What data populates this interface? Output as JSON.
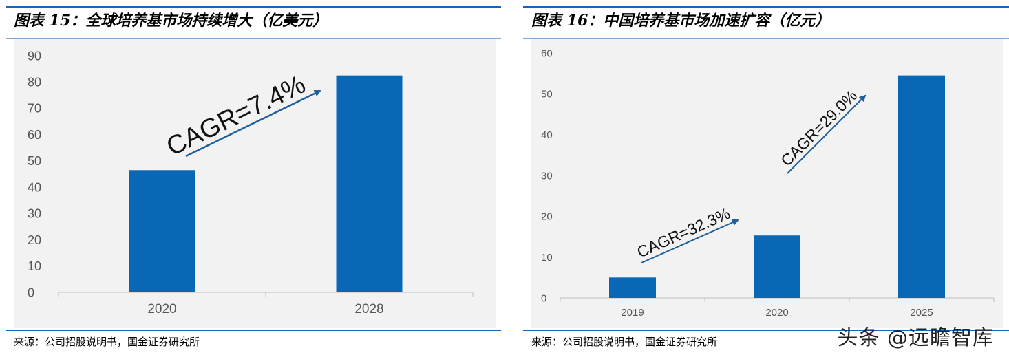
{
  "left": {
    "title": "图表 15：全球培养基市场持续增大（亿美元）",
    "source": "来源：公司招股说明书，国金证券研究所",
    "cagr_label": "CAGR=7.4%"
  },
  "right": {
    "title": "图表 16：中国培养基市场加速扩容（亿元）",
    "source": "来源：公司招股说明书，国金证券研究所",
    "cagr_label_1": "CAGR=32.3%",
    "cagr_label_2": "CAGR=29.0%"
  },
  "watermark": "头条 @远瞻智库",
  "chart_data": [
    {
      "type": "bar",
      "title": "图表 15：全球培养基市场持续增大（亿美元）",
      "categories": [
        "2020",
        "2028"
      ],
      "values": [
        46.5,
        82.5
      ],
      "ylim": [
        0,
        90
      ],
      "yticks": [
        0,
        10,
        20,
        30,
        40,
        50,
        60,
        70,
        80,
        90
      ],
      "annotations": [
        "CAGR=7.4%"
      ],
      "color": "#0a67b5",
      "grid": false
    },
    {
      "type": "bar",
      "title": "图表 16：中国培养基市场加速扩容（亿元）",
      "categories": [
        "2019",
        "2020",
        "2025"
      ],
      "values": [
        5,
        15.3,
        54.5
      ],
      "ylim": [
        0,
        60
      ],
      "yticks": [
        0,
        10,
        20,
        30,
        40,
        50,
        60
      ],
      "annotations": [
        "CAGR=32.3%",
        "CAGR=29.0%"
      ],
      "color": "#0a67b5",
      "grid": false
    }
  ]
}
